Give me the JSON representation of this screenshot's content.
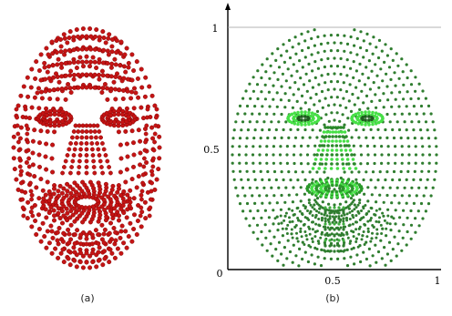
{
  "panels": [
    {
      "id": "a",
      "caption": "(a)",
      "point_color": "#c41414",
      "point_edge": "#7a0000"
    },
    {
      "id": "b",
      "caption": "(b)",
      "point_color": "#2f7d2f",
      "dense_color": "#46e046",
      "axis": {
        "x_ticks": [
          "0",
          "0.5",
          "1"
        ],
        "y_ticks": [
          "0.5",
          "1"
        ],
        "xlim": [
          0,
          1
        ],
        "ylim": [
          0,
          1
        ]
      }
    }
  ]
}
